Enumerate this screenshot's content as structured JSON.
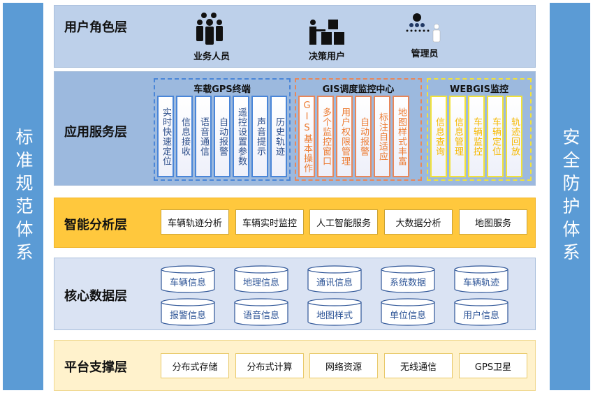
{
  "left_pillar": "标准规范体系",
  "right_pillar": "安全防护体系",
  "user_layer": {
    "title": "用户角色层",
    "roles": [
      {
        "label": "业务人员",
        "icon": "group-people-icon"
      },
      {
        "label": "决策用户",
        "icon": "presenter-boxes-icon"
      },
      {
        "label": "管理员",
        "icon": "admin-hierarchy-icon"
      }
    ]
  },
  "app_layer": {
    "title": "应用服务层",
    "panels": [
      {
        "title": "车载GPS终端",
        "color": "#4a86d8",
        "text_color": "#2e4f8a",
        "items": [
          "实时快速定位",
          "信息接收",
          "语音通信",
          "自动报警",
          "遥控设置参数",
          "声音提示",
          "历史轨迹"
        ]
      },
      {
        "title": "GIS调度监控中心",
        "color": "#e8875a",
        "text_color": "#ec7b32",
        "items": [
          "GIS基本操作",
          "多个监控窗口",
          "用户权限管理",
          "自动报警",
          "标注自适应",
          "地图样式丰富"
        ]
      },
      {
        "title": "WEBGIS监控",
        "color": "#f2e23a",
        "text_color": "#f5b800",
        "items": [
          "信息查询",
          "信息管理",
          "车辆监控",
          "车辆定位",
          "轨迹回放"
        ]
      }
    ]
  },
  "smart_layer": {
    "title": "智能分析层",
    "items": [
      "车辆轨迹分析",
      "车辆实时监控",
      "人工智能服务",
      "大数据分析",
      "地图服务"
    ]
  },
  "core_layer": {
    "title": "核心数据层",
    "items": [
      "车辆信息",
      "地理信息",
      "通讯信息",
      "系统数据",
      "车辆轨迹",
      "报警信息",
      "语音信息",
      "地图样式",
      "单位信息",
      "用户信息"
    ]
  },
  "platform_layer": {
    "title": "平台支撑层",
    "items": [
      "分布式存储",
      "分布式计算",
      "网络资源",
      "无线通信",
      "GPS卫星"
    ]
  }
}
